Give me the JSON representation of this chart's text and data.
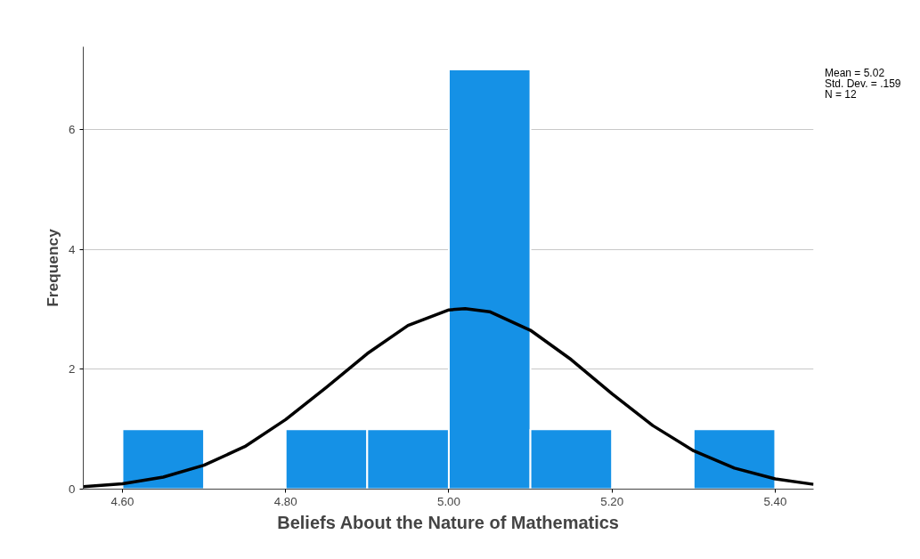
{
  "chart_data": {
    "type": "histogram",
    "xlabel": "Beliefs About the Nature of Mathematics",
    "ylabel": "Frequency",
    "annotations": [
      "Mean = 5.02",
      "Std. Dev. = .159",
      "N = 12"
    ],
    "series": [
      {
        "color": "#1591e6",
        "bins": [
          4.6,
          4.7,
          4.8,
          4.9,
          5.0,
          5.1,
          5.2,
          5.3,
          5.4
        ],
        "values": [
          1,
          0,
          1,
          1,
          7,
          1,
          0,
          1
        ]
      },
      {
        "type": "line",
        "color": "#000000",
        "x": [
          4.552,
          4.6,
          4.65,
          4.7,
          4.75,
          4.8,
          4.85,
          4.9,
          4.95,
          5.0,
          5.02,
          5.05,
          5.1,
          5.15,
          5.2,
          5.25,
          5.3,
          5.35,
          5.4,
          5.447
        ],
        "values": [
          0.04,
          0.09,
          0.2,
          0.4,
          0.71,
          1.16,
          1.7,
          2.26,
          2.73,
          2.99,
          3.01,
          2.96,
          2.65,
          2.16,
          1.59,
          1.06,
          0.64,
          0.35,
          0.17,
          0.08
        ]
      }
    ],
    "xlim": [
      4.552,
      5.447
    ],
    "ylim": [
      0,
      7.38
    ],
    "xticks": [
      {
        "value": 4.6,
        "label": "4.60"
      },
      {
        "value": 4.8,
        "label": "4.80"
      },
      {
        "value": 5.0,
        "label": "5.00"
      },
      {
        "value": 5.2,
        "label": "5.20"
      },
      {
        "value": 5.4,
        "label": "5.40"
      }
    ],
    "yticks": [
      0,
      2,
      4,
      6
    ],
    "grid": "y"
  }
}
